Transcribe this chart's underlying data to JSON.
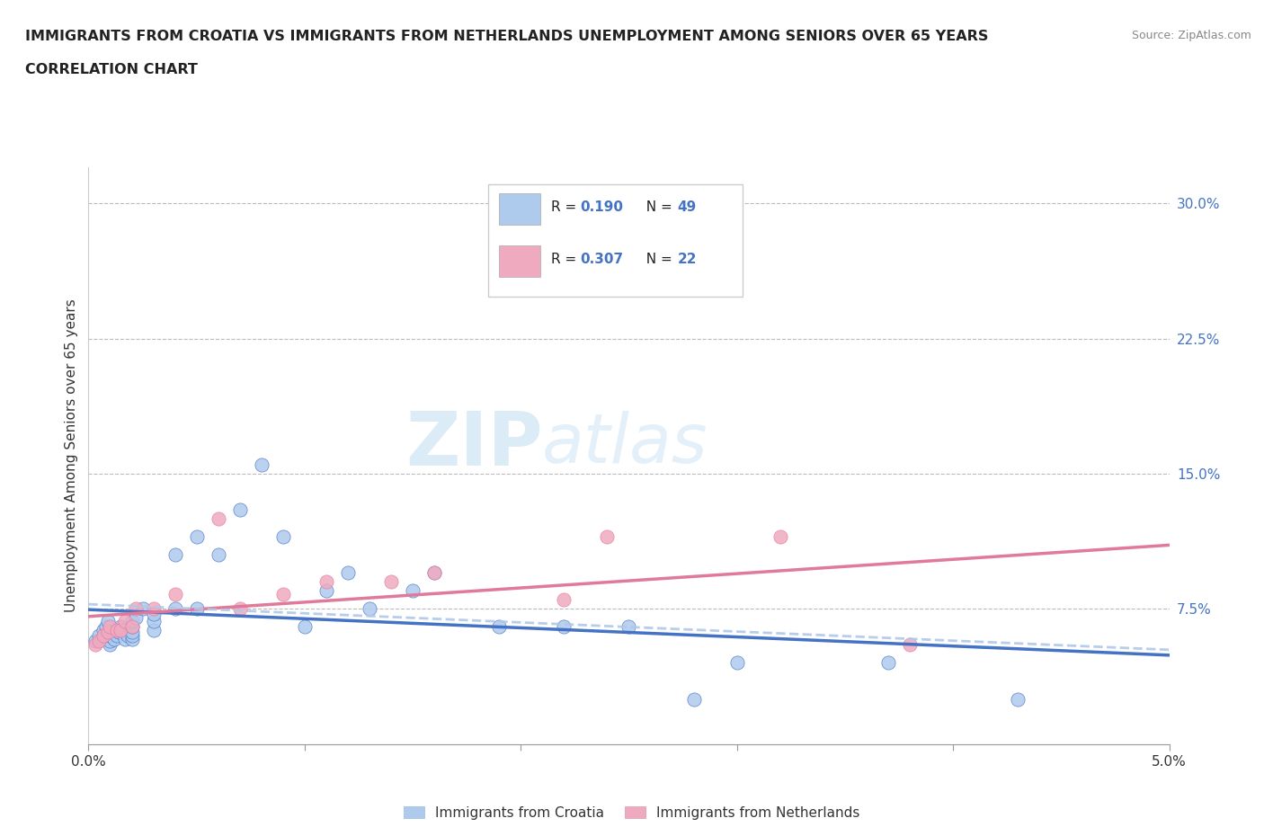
{
  "title_line1": "IMMIGRANTS FROM CROATIA VS IMMIGRANTS FROM NETHERLANDS UNEMPLOYMENT AMONG SENIORS OVER 65 YEARS",
  "title_line2": "CORRELATION CHART",
  "source": "Source: ZipAtlas.com",
  "ylabel": "Unemployment Among Seniors over 65 years",
  "xlim": [
    0.0,
    0.05
  ],
  "ylim": [
    0.0,
    0.32
  ],
  "yticks_right": [
    0.075,
    0.15,
    0.225,
    0.3
  ],
  "ytick_right_labels": [
    "7.5%",
    "15.0%",
    "22.5%",
    "30.0%"
  ],
  "R_croatia": 0.19,
  "N_croatia": 49,
  "R_netherlands": 0.307,
  "N_netherlands": 22,
  "color_croatia": "#aecbee",
  "color_netherlands": "#f0aac0",
  "color_line_croatia": "#4472c4",
  "color_line_netherlands": "#e07a9a",
  "color_text_blue": "#4472c4",
  "color_text_dark": "#222222",
  "watermark_color": "#cde4f5",
  "croatia_x": [
    0.0003,
    0.0005,
    0.0006,
    0.0007,
    0.0008,
    0.0009,
    0.001,
    0.001,
    0.001,
    0.001,
    0.0012,
    0.0013,
    0.0014,
    0.0015,
    0.0015,
    0.0016,
    0.0017,
    0.0018,
    0.002,
    0.002,
    0.002,
    0.002,
    0.002,
    0.0022,
    0.0025,
    0.003,
    0.003,
    0.003,
    0.004,
    0.004,
    0.005,
    0.005,
    0.006,
    0.007,
    0.008,
    0.009,
    0.01,
    0.011,
    0.012,
    0.013,
    0.015,
    0.016,
    0.019,
    0.022,
    0.025,
    0.028,
    0.03,
    0.037,
    0.043
  ],
  "croatia_y": [
    0.057,
    0.06,
    0.058,
    0.063,
    0.065,
    0.068,
    0.055,
    0.057,
    0.06,
    0.062,
    0.058,
    0.06,
    0.062,
    0.064,
    0.065,
    0.063,
    0.058,
    0.06,
    0.058,
    0.06,
    0.062,
    0.065,
    0.068,
    0.07,
    0.075,
    0.063,
    0.068,
    0.072,
    0.075,
    0.105,
    0.075,
    0.115,
    0.105,
    0.13,
    0.155,
    0.115,
    0.065,
    0.085,
    0.095,
    0.075,
    0.085,
    0.095,
    0.065,
    0.065,
    0.065,
    0.025,
    0.045,
    0.045,
    0.025
  ],
  "netherlands_x": [
    0.0003,
    0.0005,
    0.0007,
    0.0009,
    0.001,
    0.0013,
    0.0015,
    0.0017,
    0.002,
    0.0022,
    0.003,
    0.004,
    0.006,
    0.007,
    0.009,
    0.011,
    0.014,
    0.016,
    0.022,
    0.024,
    0.032,
    0.038
  ],
  "netherlands_y": [
    0.055,
    0.057,
    0.06,
    0.062,
    0.065,
    0.063,
    0.063,
    0.068,
    0.065,
    0.075,
    0.075,
    0.083,
    0.125,
    0.075,
    0.083,
    0.09,
    0.09,
    0.095,
    0.08,
    0.115,
    0.115,
    0.055
  ]
}
